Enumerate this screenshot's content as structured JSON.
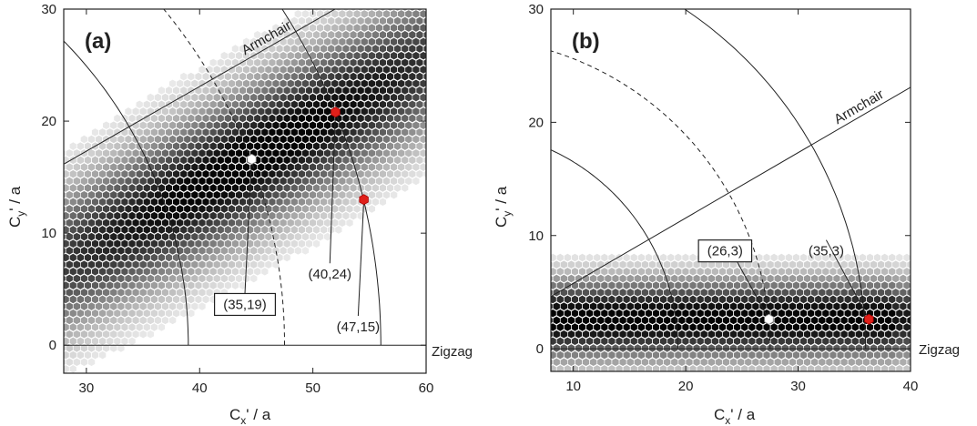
{
  "chart_data": [
    {
      "type": "heatmap",
      "panel_label": "(a)",
      "xlabel": "C",
      "xlabel_sub": "x",
      "xlabel_suffix": "' / a",
      "ylabel": "C",
      "ylabel_sub": "y",
      "ylabel_suffix": "' / a",
      "xlim": [
        28,
        60
      ],
      "ylim": [
        -2.5,
        30
      ],
      "xticks": [
        30,
        40,
        50,
        60
      ],
      "yticks": [
        0,
        10,
        20,
        30
      ],
      "line_labels": {
        "armchair": "Armchair",
        "zigzag": "Zigzag"
      },
      "band_slope_deg": 30,
      "band_peak_point": [
        44.6,
        16.6
      ],
      "arcs": [
        {
          "radius": 39.0,
          "style": "solid"
        },
        {
          "radius": 47.5,
          "style": "dashed"
        },
        {
          "radius": 56.0,
          "style": "solid"
        }
      ],
      "points": [
        {
          "label": "(35,19)",
          "boxed": true,
          "x": 44.6,
          "y": 16.6,
          "color": "#ffffff",
          "label_pos": [
            44.0,
            3.8
          ]
        },
        {
          "label": "(40,24)",
          "boxed": false,
          "x": 52.0,
          "y": 20.8,
          "color": "#e0201a",
          "label_pos": [
            51.5,
            6.5
          ]
        },
        {
          "label": "(47,15)",
          "boxed": false,
          "x": 54.5,
          "y": 13.0,
          "color": "#e0201a",
          "label_pos": [
            54.0,
            1.8
          ]
        }
      ]
    },
    {
      "type": "heatmap",
      "panel_label": "(b)",
      "xlabel": "C",
      "xlabel_sub": "x",
      "xlabel_suffix": "' / a",
      "ylabel": "C",
      "ylabel_sub": "y",
      "ylabel_suffix": "' / a",
      "xlim": [
        8,
        40
      ],
      "ylim": [
        -2,
        30
      ],
      "xticks": [
        10,
        20,
        30,
        40
      ],
      "yticks": [
        0,
        10,
        20,
        30
      ],
      "line_labels": {
        "armchair": "Armchair",
        "zigzag": "Zigzag"
      },
      "band_slope_deg": 0,
      "band_peak_point": [
        27.4,
        2.6
      ],
      "arcs": [
        {
          "radius": 19.3,
          "style": "solid"
        },
        {
          "radius": 27.5,
          "style": "dashed"
        },
        {
          "radius": 36.0,
          "style": "solid"
        }
      ],
      "points": [
        {
          "label": "(26,3)",
          "boxed": true,
          "x": 27.4,
          "y": 2.6,
          "color": "#ffffff",
          "label_pos": [
            23.5,
            8.8
          ]
        },
        {
          "label": "(35,3)",
          "boxed": false,
          "x": 36.3,
          "y": 2.6,
          "color": "#e0201a",
          "label_pos": [
            32.5,
            8.8
          ]
        }
      ]
    }
  ]
}
